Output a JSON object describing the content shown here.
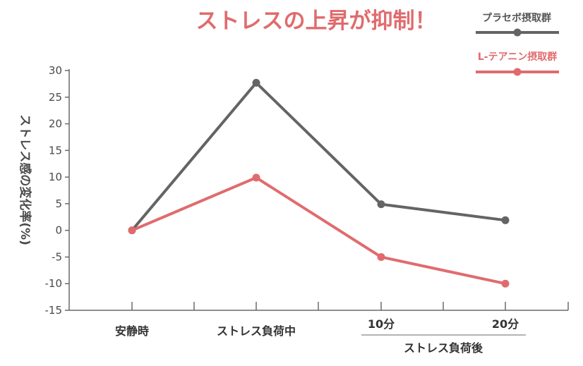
{
  "chart_data": {
    "type": "line",
    "title": "ストレスの上昇が抑制！",
    "ylabel": "ストレス感の変化率(%)",
    "ylim": [
      -15,
      30
    ],
    "yticks": [
      30,
      25,
      20,
      15,
      10,
      5,
      0,
      -5,
      -10,
      -15
    ],
    "categories": [
      "安静時",
      "ストレス負荷中",
      "10分",
      "20分"
    ],
    "category_group_label": "ストレス負荷後",
    "grid": false,
    "legend_position": "top-right",
    "series": [
      {
        "name": "プラセボ摂取群",
        "color": "#646464",
        "values": [
          0,
          27.7,
          4.9,
          1.9
        ]
      },
      {
        "name": "L-テアニン摂取群",
        "color": "#e06b6e",
        "values": [
          0,
          9.9,
          -5.0,
          -10.0
        ]
      }
    ]
  },
  "colors": {
    "title": "#e06b6e",
    "axis": "#6a6a6a"
  }
}
